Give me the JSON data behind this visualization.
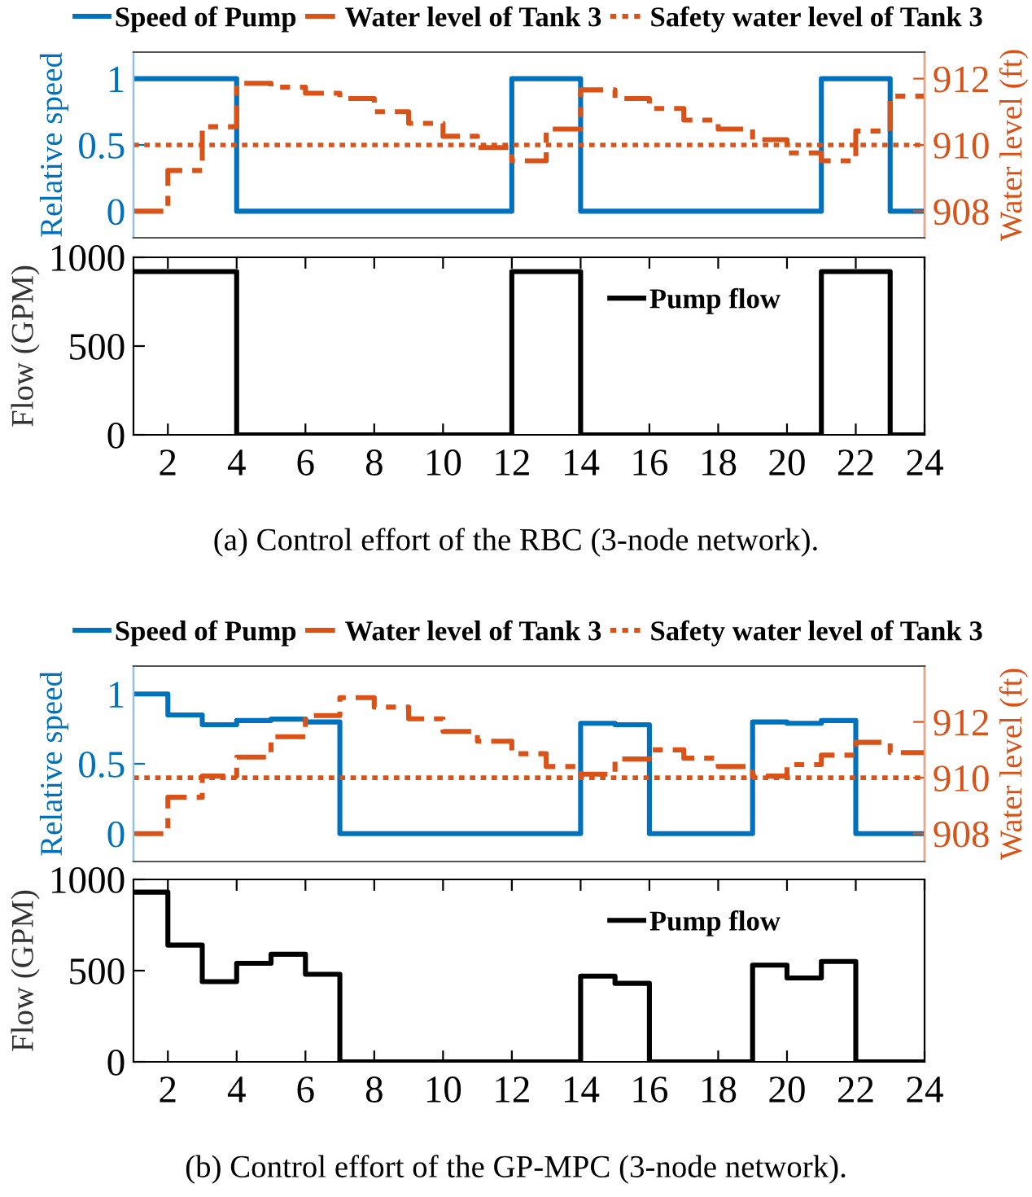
{
  "chart_data": [
    {
      "type": "step",
      "x": [
        1,
        2,
        3,
        4,
        5,
        6,
        7,
        8,
        9,
        10,
        11,
        12,
        13,
        14,
        15,
        16,
        17,
        18,
        19,
        20,
        21,
        22,
        23,
        24
      ],
      "ylabel": "Relative speed",
      "y2label": "Water level (ft)",
      "xlim": [
        1,
        24
      ],
      "ylim": [
        -0.2,
        1.2
      ],
      "yticks": [
        0,
        0.5,
        1
      ],
      "y2lim": [
        907.2,
        912.8
      ],
      "y2ticks": [
        908,
        910,
        912
      ],
      "tick_labels": [
        "y",
        "y2"
      ],
      "legend": "top",
      "line_style": "solid",
      "series": [
        {
          "name": "Speed of Pump",
          "color": "#0072bd",
          "values": [
            1,
            1,
            1,
            0,
            0,
            0,
            0,
            0,
            0,
            0,
            0,
            1,
            1,
            0,
            0,
            0,
            0,
            0,
            0,
            0,
            1,
            1,
            0,
            0
          ]
        },
        {
          "name": "Water level of Tank 3",
          "color": "#d95319",
          "axis": "y2",
          "line_style": "dashed",
          "values": [
            908,
            909.23,
            910.55,
            911.86,
            911.74,
            911.56,
            911.4,
            911.0,
            910.65,
            910.26,
            909.92,
            909.52,
            910.48,
            911.66,
            911.4,
            911.1,
            910.75,
            910.48,
            910.16,
            909.76,
            909.52,
            910.42,
            911.47,
            911.47
          ]
        }
      ],
      "ref_lines": [
        {
          "axis": "y2",
          "value": 910,
          "label": "Safety water level of Tank 3",
          "color": "#d95319",
          "line_style": "dotted"
        }
      ]
    },
    {
      "type": "step",
      "x": [
        1,
        2,
        3,
        4,
        5,
        6,
        7,
        8,
        9,
        10,
        11,
        12,
        13,
        14,
        15,
        16,
        17,
        18,
        19,
        20,
        21,
        22,
        23,
        24
      ],
      "ylabel": "Flow (GPM)",
      "xlim": [
        1,
        24
      ],
      "xticks": [
        2,
        4,
        6,
        8,
        10,
        12,
        14,
        16,
        18,
        20,
        22,
        24
      ],
      "ylim": [
        0,
        1000
      ],
      "yticks": [
        0,
        500,
        1000
      ],
      "legend": "top right",
      "series": [
        {
          "name": "Pump flow",
          "color": "#000000",
          "values": [
            920,
            920,
            920,
            0,
            0,
            0,
            0,
            0,
            0,
            0,
            0,
            920,
            920,
            0,
            0,
            0,
            0,
            0,
            0,
            0,
            920,
            920,
            0,
            0
          ]
        }
      ],
      "annotations": [
        "(a) Control effort of the RBC (3-node network)."
      ]
    },
    {
      "type": "step",
      "x": [
        1,
        2,
        3,
        4,
        5,
        6,
        7,
        8,
        9,
        10,
        11,
        12,
        13,
        14,
        15,
        16,
        17,
        18,
        19,
        20,
        21,
        22,
        23,
        24
      ],
      "ylabel": "Relative speed",
      "y2label": "Water level (ft)",
      "xlim": [
        1,
        24
      ],
      "ylim": [
        -0.2,
        1.2
      ],
      "yticks": [
        0,
        0.5,
        1
      ],
      "y2lim": [
        907,
        914
      ],
      "y2ticks": [
        908,
        910,
        912
      ],
      "tick_labels": [
        "y",
        "y2"
      ],
      "legend": "top",
      "line_style": "solid",
      "series": [
        {
          "name": "Speed of Pump",
          "color": "#0072bd",
          "values": [
            1.0,
            0.85,
            0.78,
            0.81,
            0.82,
            0.8,
            0,
            0,
            0,
            0,
            0,
            0,
            0,
            0.79,
            0.78,
            0,
            0,
            0,
            0.8,
            0.79,
            0.81,
            0,
            0,
            0
          ]
        },
        {
          "name": "Water level of Tank 3",
          "color": "#d95319",
          "axis": "y2",
          "line_style": "dashed",
          "values": [
            908,
            909.3,
            910.06,
            910.74,
            911.47,
            912.23,
            912.87,
            912.53,
            912.11,
            911.66,
            911.31,
            910.86,
            910.4,
            910.13,
            910.67,
            911.0,
            910.7,
            910.4,
            910.06,
            910.47,
            910.81,
            911.27,
            910.9,
            910.9
          ]
        }
      ],
      "ref_lines": [
        {
          "axis": "y2",
          "value": 910,
          "label": "Safety water level of Tank 3",
          "color": "#d95319",
          "line_style": "dotted"
        }
      ]
    },
    {
      "type": "step",
      "x": [
        1,
        2,
        3,
        4,
        5,
        6,
        7,
        8,
        9,
        10,
        11,
        12,
        13,
        14,
        15,
        16,
        17,
        18,
        19,
        20,
        21,
        22,
        23,
        24
      ],
      "ylabel": "Flow (GPM)",
      "xlim": [
        1,
        24
      ],
      "xticks": [
        2,
        4,
        6,
        8,
        10,
        12,
        14,
        16,
        18,
        20,
        22,
        24
      ],
      "ylim": [
        0,
        1000
      ],
      "yticks": [
        0,
        500,
        1000
      ],
      "legend": "top right",
      "series": [
        {
          "name": "Pump flow",
          "color": "#000000",
          "values": [
            930,
            640,
            440,
            540,
            590,
            480,
            0,
            0,
            0,
            0,
            0,
            0,
            0,
            470,
            430,
            0,
            0,
            0,
            530,
            460,
            550,
            0,
            0,
            0
          ]
        }
      ],
      "annotations": [
        "(b) Control effort of the GP-MPC (3-node network)."
      ]
    }
  ]
}
